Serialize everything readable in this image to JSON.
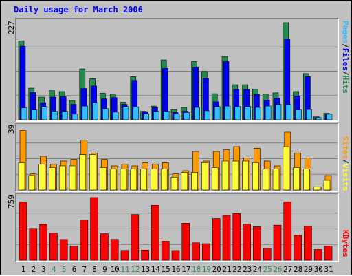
{
  "title": "Daily usage for March 2006",
  "colors": {
    "hits": "#228b4e",
    "files": "#0000ee",
    "pages": "#30c0ff",
    "visits": "#ffff33",
    "sites": "#ff9900",
    "kbytes": "#ff0000",
    "weekend_label": "#2e8b57",
    "weekday_label": "#000000"
  },
  "panels": {
    "hits": {
      "max_label": "227",
      "label_hits": "Hits",
      "label_files": "Files",
      "label_pages": "Pages",
      "sep": "/"
    },
    "visits": {
      "max_label": "39",
      "label_visits": "Visits",
      "label_sites": "Sites",
      "sep": "/"
    },
    "kbytes": {
      "max_label": "759",
      "label_kbytes": "KBytes"
    }
  },
  "chart_data": {
    "type": "bar",
    "title": "Daily usage for March 2006",
    "categories": [
      "1",
      "2",
      "3",
      "4",
      "5",
      "6",
      "7",
      "8",
      "9",
      "10",
      "11",
      "12",
      "13",
      "14",
      "15",
      "16",
      "17",
      "18",
      "19",
      "20",
      "21",
      "22",
      "23",
      "24",
      "25",
      "26",
      "27",
      "28",
      "29",
      "30",
      "31"
    ],
    "weekend_days": [
      "4",
      "5",
      "11",
      "12",
      "18",
      "19",
      "25",
      "26"
    ],
    "charts": [
      {
        "name": "hits-files-pages",
        "ylim": [
          0,
          227
        ],
        "series": [
          {
            "name": "Hits",
            "values": [
              184,
              74,
              53,
              68,
              66,
              45,
              119,
              96,
              62,
              60,
              41,
              101,
              20,
              32,
              140,
              24,
              29,
              136,
              113,
              61,
              148,
              82,
              82,
              72,
              60,
              63,
              227,
              66,
              108,
              7,
              15
            ]
          },
          {
            "name": "Files",
            "values": [
              172,
              64,
              40,
              53,
              54,
              36,
              73,
              79,
              49,
              52,
              36,
              92,
              19,
              29,
              120,
              17,
              20,
              123,
              97,
              42,
              136,
              71,
              71,
              59,
              46,
              51,
              189,
              56,
              101,
              5,
              12
            ]
          },
          {
            "name": "Pages",
            "values": [
              28,
              23,
              31,
              20,
              20,
              13,
              32,
              40,
              26,
              18,
              31,
              30,
              14,
              20,
              20,
              14,
              17,
              29,
              21,
              31,
              32,
              31,
              31,
              29,
              32,
              36,
              36,
              23,
              24,
              5,
              13
            ]
          }
        ]
      },
      {
        "name": "visits-sites",
        "ylim": [
          0,
          39
        ],
        "series": [
          {
            "name": "Visits",
            "values": [
              17,
              9,
              16,
              14,
              15,
              15,
              22,
              22,
              14,
              13,
              13,
              13,
              13,
              13,
              13,
              8,
              11,
              11,
              17,
              14,
              18,
              18,
              18,
              17,
              13,
              13,
              27,
              14,
              13,
              2,
              6
            ]
          },
          {
            "name": "Sites",
            "values": [
              37,
              10,
              21,
              16,
              18,
              19,
              31,
              23,
              19,
              15,
              16,
              15,
              17,
              16,
              17,
              10,
              12,
              24,
              18,
              24,
              25,
              27,
              20,
              26,
              18,
              15,
              36,
              23,
              20,
              2,
              9
            ]
          }
        ]
      },
      {
        "name": "kbytes",
        "ylim": [
          0,
          759
        ],
        "series": [
          {
            "name": "KBytes",
            "values": [
              703,
              385,
              434,
              329,
              251,
              170,
              486,
              759,
              320,
              252,
              118,
              553,
              123,
              664,
              229,
              117,
              447,
              210,
              200,
              504,
              543,
              564,
              437,
              405,
              145,
              424,
              707,
              301,
              415,
              129,
              172
            ]
          }
        ]
      }
    ]
  }
}
